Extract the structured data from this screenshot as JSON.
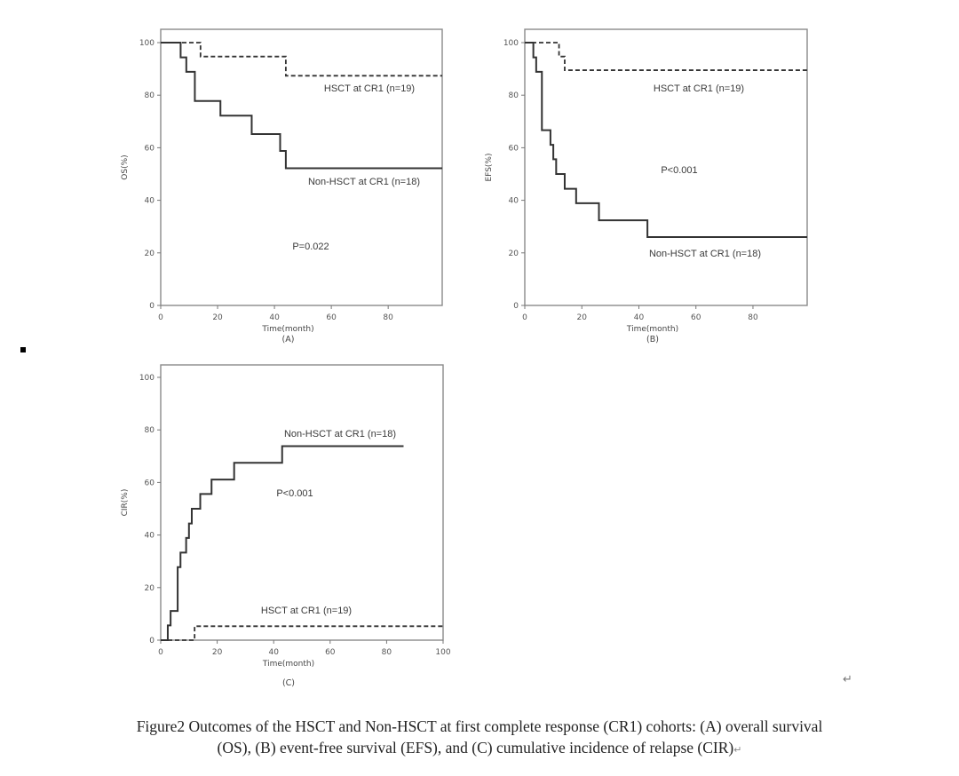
{
  "chart_data": [
    {
      "type": "line",
      "step": true,
      "panel_label": "(A)",
      "xlabel": "Time(month)",
      "ylabel": "OS(%)",
      "xlim": [
        0,
        99
      ],
      "ylim": [
        0,
        100
      ],
      "xticks": [
        0,
        20,
        40,
        60,
        80
      ],
      "yticks": [
        0,
        20,
        40,
        60,
        80,
        100
      ],
      "series": [
        {
          "name": "HSCT at CR1 (n=19)",
          "style": "dashed",
          "x": [
            0,
            14,
            44,
            99
          ],
          "y": [
            100,
            94.7,
            87.4,
            87.4
          ]
        },
        {
          "name": "Non-HSCT at CR1 (n=18)",
          "style": "solid",
          "x": [
            0,
            7,
            9,
            12,
            21,
            32,
            42,
            44,
            99
          ],
          "y": [
            100,
            94.4,
            88.9,
            77.8,
            72.2,
            65.2,
            58.8,
            52.2,
            52.2
          ]
        }
      ],
      "annotations": [
        "HSCT at CR1 (n=19)",
        "Non-HSCT at CR1 (n=18)",
        "P=0.022"
      ]
    },
    {
      "type": "line",
      "step": true,
      "panel_label": "(B)",
      "xlabel": "Time(month)",
      "ylabel": "EFS(%)",
      "xlim": [
        0,
        99
      ],
      "ylim": [
        0,
        100
      ],
      "xticks": [
        0,
        20,
        40,
        60,
        80
      ],
      "yticks": [
        0,
        20,
        40,
        60,
        80,
        100
      ],
      "series": [
        {
          "name": "HSCT at CR1 (n=19)",
          "style": "dashed",
          "x": [
            0,
            12,
            14,
            99
          ],
          "y": [
            100,
            94.7,
            89.5,
            89.5
          ]
        },
        {
          "name": "Non-HSCT at CR1 (n=18)",
          "style": "solid",
          "x": [
            0,
            3,
            4,
            6,
            9,
            10,
            11,
            14,
            18,
            26,
            43,
            99
          ],
          "y": [
            100,
            94.4,
            88.9,
            66.7,
            61.1,
            55.6,
            50,
            44.4,
            38.9,
            32.4,
            26,
            26
          ]
        }
      ],
      "annotations": [
        "HSCT at CR1 (n=19)",
        "P<0.001",
        "Non-HSCT at CR1 (n=18)"
      ]
    },
    {
      "type": "line",
      "step": true,
      "panel_label": "(C)",
      "xlabel": "Time(month)",
      "ylabel": "CIR(%)",
      "xlim": [
        0,
        100
      ],
      "ylim": [
        0,
        100
      ],
      "xticks": [
        0,
        20,
        40,
        60,
        80,
        100
      ],
      "yticks": [
        0,
        20,
        40,
        60,
        80,
        100
      ],
      "series": [
        {
          "name": "Non-HSCT at CR1 (n=18)",
          "style": "solid",
          "x": [
            0,
            2.5,
            3.5,
            6,
            7,
            9,
            10,
            11,
            14,
            18,
            26,
            43,
            86
          ],
          "y": [
            0,
            5.6,
            11.1,
            27.8,
            33.3,
            38.9,
            44.4,
            50,
            55.6,
            61.1,
            67.5,
            73.8,
            73.8
          ]
        },
        {
          "name": "HSCT at CR1 (n=19)",
          "style": "dashed",
          "x": [
            0,
            12,
            100
          ],
          "y": [
            0,
            5.3,
            5.3
          ]
        }
      ],
      "annotations": [
        "Non-HSCT at CR1 (n=18)",
        "P<0.001",
        "HSCT at CR1 (n=19)"
      ]
    }
  ],
  "caption": {
    "line1": "Figure2 Outcomes of the HSCT and Non-HSCT at first complete response (CR1) cohorts: (A) overall survival",
    "line2": "(OS), (B) event-free survival (EFS), and (C) cumulative incidence of relapse (CIR)"
  },
  "marks": {
    "return_glyph": "↵",
    "caption_return_glyph": "↵"
  }
}
